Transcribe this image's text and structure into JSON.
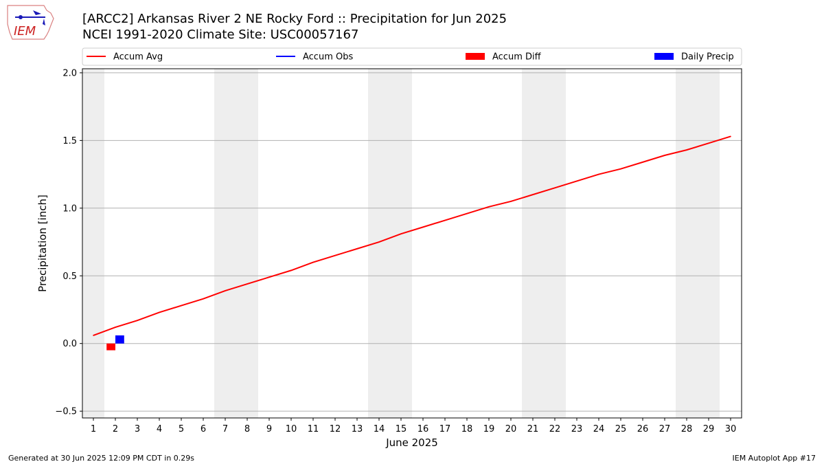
{
  "header": {
    "title_line1": "[ARCC2] Arkansas River 2 NE Rocky Ford :: Precipitation for Jun 2025",
    "title_line2": "NCEI 1991-2020 Climate Site: USC00057167",
    "logo_text": "IEM"
  },
  "footer": {
    "generated": "Generated at 30 Jun 2025 12:09 PM CDT in 0.29s",
    "app": "IEM Autoplot App #17"
  },
  "colors": {
    "accum_avg": "#ff0000",
    "accum_obs": "#0000ff",
    "accum_diff": "#ff0000",
    "daily_precip": "#0000ff",
    "weekend_band": "#eeeeee",
    "grid": "#b0b0b0"
  },
  "chart_data": {
    "type": "line",
    "xlabel": "June 2025",
    "ylabel": "Precipitation [inch]",
    "xlim": [
      0.5,
      30.5
    ],
    "ylim": [
      -0.55,
      2.03
    ],
    "x_ticks": [
      1,
      2,
      3,
      4,
      5,
      6,
      7,
      8,
      9,
      10,
      11,
      12,
      13,
      14,
      15,
      16,
      17,
      18,
      19,
      20,
      21,
      22,
      23,
      24,
      25,
      26,
      27,
      28,
      29,
      30
    ],
    "y_ticks": [
      -0.5,
      0.0,
      0.5,
      1.0,
      1.5,
      2.0
    ],
    "y_tick_labels": [
      "−0.5",
      "0.0",
      "0.5",
      "1.0",
      "1.5",
      "2.0"
    ],
    "grid": "horizontal",
    "legend_position": "top",
    "weekend_bands": [
      [
        0.5,
        1.5
      ],
      [
        6.5,
        8.5
      ],
      [
        13.5,
        15.5
      ],
      [
        20.5,
        22.5
      ],
      [
        27.5,
        29.5
      ]
    ],
    "legend": [
      "Accum Avg",
      "Accum Obs",
      "Accum Diff",
      "Daily Precip"
    ],
    "series": [
      {
        "name": "Accum Avg",
        "kind": "line",
        "x": [
          1,
          2,
          3,
          4,
          5,
          6,
          7,
          8,
          9,
          10,
          11,
          12,
          13,
          14,
          15,
          16,
          17,
          18,
          19,
          20,
          21,
          22,
          23,
          24,
          25,
          26,
          27,
          28,
          29,
          30
        ],
        "values": [
          0.06,
          0.12,
          0.17,
          0.23,
          0.28,
          0.33,
          0.39,
          0.44,
          0.49,
          0.54,
          0.6,
          0.65,
          0.7,
          0.75,
          0.81,
          0.86,
          0.91,
          0.96,
          1.01,
          1.05,
          1.1,
          1.15,
          1.2,
          1.25,
          1.29,
          1.34,
          1.39,
          1.43,
          1.48,
          1.53
        ]
      },
      {
        "name": "Accum Obs",
        "kind": "line",
        "x": [],
        "values": []
      },
      {
        "name": "Accum Diff",
        "kind": "bar",
        "x": [
          2
        ],
        "values": [
          -0.05
        ]
      },
      {
        "name": "Daily Precip",
        "kind": "bar",
        "x": [
          2
        ],
        "values": [
          0.06
        ]
      }
    ]
  }
}
